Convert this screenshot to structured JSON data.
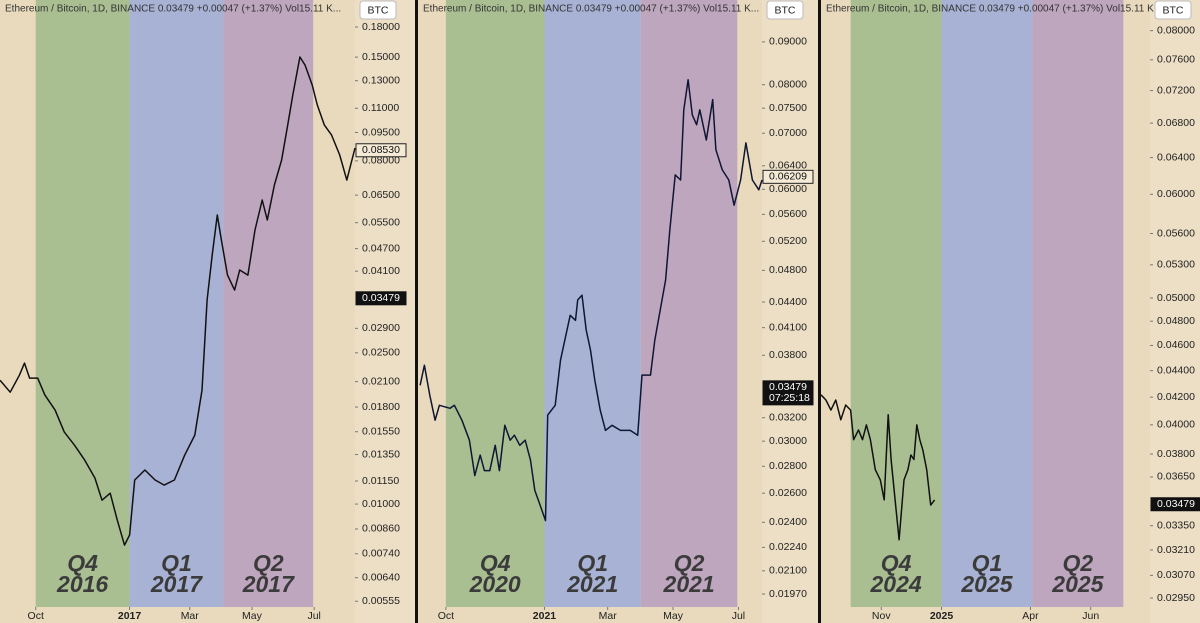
{
  "chart_data": [
    {
      "type": "line",
      "log_scale": true,
      "header": "Ethereum / Bitcoin, 1D, BINANCE  0.03479  +0.00047 (+1.37%)  Vol15.11 K...",
      "currency": "BTC",
      "xlim": [
        -35,
        313
      ],
      "ylim": [
        0.00536,
        0.212
      ],
      "xticks": [
        {
          "value": 0,
          "label": "Oct"
        },
        {
          "value": 92,
          "label": "2017"
        },
        {
          "value": 151,
          "label": "Mar"
        },
        {
          "value": 212,
          "label": "May"
        },
        {
          "value": 273,
          "label": "Jul"
        }
      ],
      "yticks": [
        {
          "value": 0.18,
          "label": "0.18000"
        },
        {
          "value": 0.15,
          "label": "0.15000"
        },
        {
          "value": 0.13,
          "label": "0.13000"
        },
        {
          "value": 0.11,
          "label": "0.11000"
        },
        {
          "value": 0.095,
          "label": "0.09500"
        },
        {
          "value": 0.08,
          "label": "0.08000"
        },
        {
          "value": 0.065,
          "label": "0.06500"
        },
        {
          "value": 0.055,
          "label": "0.05500"
        },
        {
          "value": 0.047,
          "label": "0.04700"
        },
        {
          "value": 0.041,
          "label": "0.04100"
        },
        {
          "value": 0.029,
          "label": "0.02900"
        },
        {
          "value": 0.025,
          "label": "0.02500"
        },
        {
          "value": 0.021,
          "label": "0.02100"
        },
        {
          "value": 0.018,
          "label": "0.01800"
        },
        {
          "value": 0.0155,
          "label": "0.01550"
        },
        {
          "value": 0.0135,
          "label": "0.01350"
        },
        {
          "value": 0.0115,
          "label": "0.01150"
        },
        {
          "value": 0.01,
          "label": "0.01000"
        },
        {
          "value": 0.0086,
          "label": "0.00860"
        },
        {
          "value": 0.0074,
          "label": "0.00740"
        },
        {
          "value": 0.0064,
          "label": "0.00640"
        },
        {
          "value": 0.00555,
          "label": "0.00555"
        }
      ],
      "bands": [
        {
          "quarter": "Q4",
          "year": "2016",
          "start": 0,
          "end": 92,
          "color": "#a9bf92"
        },
        {
          "quarter": "Q1",
          "year": "2017",
          "start": 92,
          "end": 184,
          "color": "#a8b2d4"
        },
        {
          "quarter": "Q2",
          "year": "2017",
          "start": 184,
          "end": 272,
          "color": "#bea6be"
        }
      ],
      "x": [
        -35,
        -25,
        -16,
        -11,
        -6,
        2,
        9,
        19,
        28,
        38,
        48,
        58,
        65,
        73,
        80,
        87,
        92,
        97,
        107,
        117,
        126,
        136,
        146,
        156,
        163,
        168,
        173,
        178,
        182,
        188,
        195,
        200,
        208,
        215,
        222,
        227,
        234,
        241,
        247,
        252,
        259,
        264,
        271,
        276,
        283,
        290,
        298,
        305,
        313
      ],
      "series": [
        {
          "color": "#111111",
          "values": [
            0.02118,
            0.0197,
            0.02183,
            0.02349,
            0.02145,
            0.02145,
            0.01935,
            0.01767,
            0.01547,
            0.01429,
            0.01305,
            0.01171,
            0.01024,
            0.01068,
            0.00907,
            0.0078,
            0.00829,
            0.01157,
            0.01229,
            0.01157,
            0.01122,
            0.01157,
            0.01344,
            0.01519,
            0.01994,
            0.03441,
            0.04523,
            0.05761,
            0.0495,
            0.04005,
            0.03655,
            0.0413,
            0.04005,
            0.05261,
            0.06311,
            0.05592,
            0.06912,
            0.08038,
            0.09937,
            0.1192,
            0.1501,
            0.143,
            0.1267,
            0.1122,
            0.09937,
            0.0936,
            0.0829,
            0.0712,
            0.0865
          ]
        }
      ],
      "price_labels": [
        {
          "value": 0.0853,
          "label": "0.08530",
          "style": "outline"
        },
        {
          "value": 0.03479,
          "label": "0.03479",
          "style": "solid"
        }
      ]
    },
    {
      "type": "line",
      "log_scale": true,
      "header": "Ethereum / Bitcoin, 1D, BINANCE  0.03479  +0.00047 (+1.37%)  Vol15.11 K...",
      "currency": "BTC",
      "xlim": [
        -26,
        295
      ],
      "ylim": [
        0.01901,
        0.101
      ],
      "xticks": [
        {
          "value": 0,
          "label": "Oct"
        },
        {
          "value": 92,
          "label": "2021"
        },
        {
          "value": 151,
          "label": "Mar"
        },
        {
          "value": 212,
          "label": "May"
        },
        {
          "value": 273,
          "label": "Jul"
        }
      ],
      "yticks": [
        {
          "value": 0.09,
          "label": "0.09000"
        },
        {
          "value": 0.08,
          "label": "0.08000"
        },
        {
          "value": 0.075,
          "label": "0.07500"
        },
        {
          "value": 0.07,
          "label": "0.07000"
        },
        {
          "value": 0.064,
          "label": "0.06400"
        },
        {
          "value": 0.06,
          "label": "0.06000"
        },
        {
          "value": 0.056,
          "label": "0.05600"
        },
        {
          "value": 0.052,
          "label": "0.05200"
        },
        {
          "value": 0.048,
          "label": "0.04800"
        },
        {
          "value": 0.044,
          "label": "0.04400"
        },
        {
          "value": 0.041,
          "label": "0.04100"
        },
        {
          "value": 0.038,
          "label": "0.03800"
        },
        {
          "value": 0.032,
          "label": "0.03200"
        },
        {
          "value": 0.03,
          "label": "0.03000"
        },
        {
          "value": 0.028,
          "label": "0.02800"
        },
        {
          "value": 0.026,
          "label": "0.02600"
        },
        {
          "value": 0.024,
          "label": "0.02400"
        },
        {
          "value": 0.0224,
          "label": "0.02240"
        },
        {
          "value": 0.021,
          "label": "0.02100"
        },
        {
          "value": 0.0197,
          "label": "0.01970"
        }
      ],
      "bands": [
        {
          "quarter": "Q4",
          "year": "2020",
          "start": 0,
          "end": 92,
          "color": "#a9bf92"
        },
        {
          "quarter": "Q1",
          "year": "2021",
          "start": 92,
          "end": 182,
          "color": "#a8b2d4"
        },
        {
          "quarter": "Q2",
          "year": "2021",
          "start": 182,
          "end": 272,
          "color": "#bea6be"
        }
      ],
      "x": [
        -24,
        -20,
        -15,
        -10,
        -6,
        4,
        8,
        15,
        22,
        27,
        32,
        36,
        41,
        46,
        50,
        55,
        60,
        64,
        69,
        74,
        79,
        83,
        88,
        93,
        95,
        102,
        107,
        111,
        116,
        121,
        123,
        127,
        131,
        135,
        139,
        144,
        149,
        155,
        163,
        172,
        179,
        183,
        191,
        195,
        200,
        205,
        209,
        214,
        219,
        222,
        226,
        230,
        234,
        237,
        243,
        249,
        252,
        258,
        264,
        269,
        275,
        280,
        286,
        292,
        295
      ],
      "series": [
        {
          "color": "#0f1633",
          "values": [
            0.03498,
            0.03698,
            0.03404,
            0.03178,
            0.03311,
            0.03284,
            0.03311,
            0.03178,
            0.03008,
            0.02729,
            0.02887,
            0.02767,
            0.02767,
            0.02966,
            0.02767,
            0.03134,
            0.03008,
            0.0305,
            0.02966,
            0.03008,
            0.02847,
            0.0262,
            0.02514,
            0.02411,
            0.03223,
            0.03311,
            0.03749,
            0.03961,
            0.04242,
            0.04184,
            0.04425,
            0.04483,
            0.04074,
            0.03855,
            0.03548,
            0.03268,
            0.0309,
            0.03134,
            0.0309,
            0.0309,
            0.0305,
            0.03598,
            0.03598,
            0.03961,
            0.04303,
            0.04675,
            0.0536,
            0.06242,
            0.06155,
            0.07466,
            0.0811,
            0.07362,
            0.07166,
            0.07466,
            0.06872,
            0.07678,
            0.06689,
            0.06329,
            0.06155,
            0.05743,
            0.06155,
            0.06817,
            0.06155,
            0.05991,
            0.06155
          ]
        }
      ],
      "price_labels": [
        {
          "value": 0.06209,
          "label": "0.06209",
          "style": "outline"
        },
        {
          "value": 0.03479,
          "label": "0.03479",
          "sublabel": "07:25:18",
          "style": "solid"
        }
      ]
    },
    {
      "type": "line",
      "log_scale": true,
      "header": "Ethereum / Bitcoin, 1D, BINANCE  0.03479  +0.00047 (+1.37%)  Vol15.11 K...",
      "currency": "BTC",
      "xlim": [
        -30,
        303
      ],
      "ylim": [
        0.02904,
        0.08443
      ],
      "xticks": [
        {
          "value": 31,
          "label": "Nov"
        },
        {
          "value": 92,
          "label": "2025"
        },
        {
          "value": 182,
          "label": "Apr"
        },
        {
          "value": 243,
          "label": "Jun"
        }
      ],
      "yticks": [
        {
          "value": 0.08,
          "label": "0.08000"
        },
        {
          "value": 0.076,
          "label": "0.07600"
        },
        {
          "value": 0.072,
          "label": "0.07200"
        },
        {
          "value": 0.068,
          "label": "0.06800"
        },
        {
          "value": 0.064,
          "label": "0.06400"
        },
        {
          "value": 0.06,
          "label": "0.06000"
        },
        {
          "value": 0.056,
          "label": "0.05600"
        },
        {
          "value": 0.053,
          "label": "0.05300"
        },
        {
          "value": 0.05,
          "label": "0.05000"
        },
        {
          "value": 0.048,
          "label": "0.04800"
        },
        {
          "value": 0.046,
          "label": "0.04600"
        },
        {
          "value": 0.044,
          "label": "0.04400"
        },
        {
          "value": 0.042,
          "label": "0.04200"
        },
        {
          "value": 0.04,
          "label": "0.04000"
        },
        {
          "value": 0.038,
          "label": "0.03800"
        },
        {
          "value": 0.0365,
          "label": "0.03650"
        },
        {
          "value": 0.0335,
          "label": "0.03350"
        },
        {
          "value": 0.0321,
          "label": "0.03210"
        },
        {
          "value": 0.0307,
          "label": "0.03070"
        },
        {
          "value": 0.0295,
          "label": "0.02950"
        }
      ],
      "bands": [
        {
          "quarter": "Q4",
          "year": "2024",
          "start": 0,
          "end": 92,
          "color": "#a9bf92"
        },
        {
          "quarter": "Q1",
          "year": "2025",
          "start": 92,
          "end": 184,
          "color": "#a8b2d4"
        },
        {
          "quarter": "Q2",
          "year": "2025",
          "start": 184,
          "end": 276,
          "color": "#bea6be"
        }
      ],
      "x": [
        -30,
        -25,
        -20,
        -15,
        -10,
        -5,
        0,
        3,
        8,
        12,
        16,
        20,
        25,
        30,
        34,
        38,
        41,
        45,
        49,
        54,
        58,
        61,
        64,
        67,
        70,
        73,
        77,
        81,
        85
      ],
      "series": [
        {
          "color": "#111111",
          "values": [
            0.04217,
            0.04179,
            0.04105,
            0.04179,
            0.04036,
            0.04142,
            0.04105,
            0.03897,
            0.03964,
            0.03897,
            0.04,
            0.03897,
            0.03697,
            0.03631,
            0.03506,
            0.04072,
            0.03764,
            0.03506,
            0.03268,
            0.03631,
            0.03697,
            0.03794,
            0.03764,
            0.04,
            0.03897,
            0.03828,
            0.03697,
            0.03474,
            0.03506
          ]
        }
      ],
      "price_labels": [
        {
          "value": 0.03479,
          "label": "0.03479",
          "style": "solid"
        }
      ]
    }
  ]
}
